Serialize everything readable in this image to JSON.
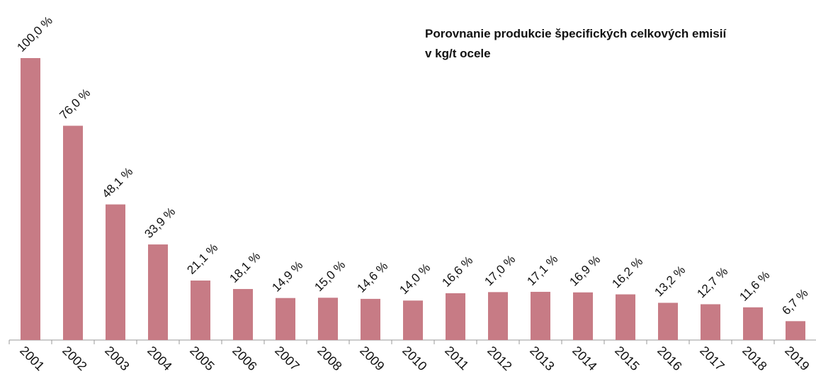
{
  "chart_data": {
    "type": "bar",
    "title": [
      "Porovnanie produkcie špecifických celkových emisií",
      "v kg/t ocele"
    ],
    "categories": [
      "2001",
      "2002",
      "2003",
      "2004",
      "2005",
      "2006",
      "2007",
      "2008",
      "2009",
      "2010",
      "2011",
      "2012",
      "2013",
      "2014",
      "2015",
      "2016",
      "2017",
      "2018",
      "2019"
    ],
    "values": [
      100.0,
      76.0,
      48.1,
      33.9,
      21.1,
      18.1,
      14.9,
      15.0,
      14.6,
      14.0,
      16.6,
      17.0,
      17.1,
      16.9,
      16.2,
      13.2,
      12.7,
      11.6,
      6.7
    ],
    "value_labels": [
      "100,0 %",
      "76,0 %",
      "48,1 %",
      "33,9 %",
      "21,1 %",
      "18,1 %",
      "14,9 %",
      "15,0 %",
      "14,6 %",
      "14,0 %",
      "16,6 %",
      "17,0 %",
      "17,1 %",
      "16,9 %",
      "16,2 %",
      "13,2 %",
      "12,7 %",
      "11,6 %",
      "6,7 %"
    ],
    "color": "#c77b85",
    "ylim": [
      0,
      100
    ]
  }
}
